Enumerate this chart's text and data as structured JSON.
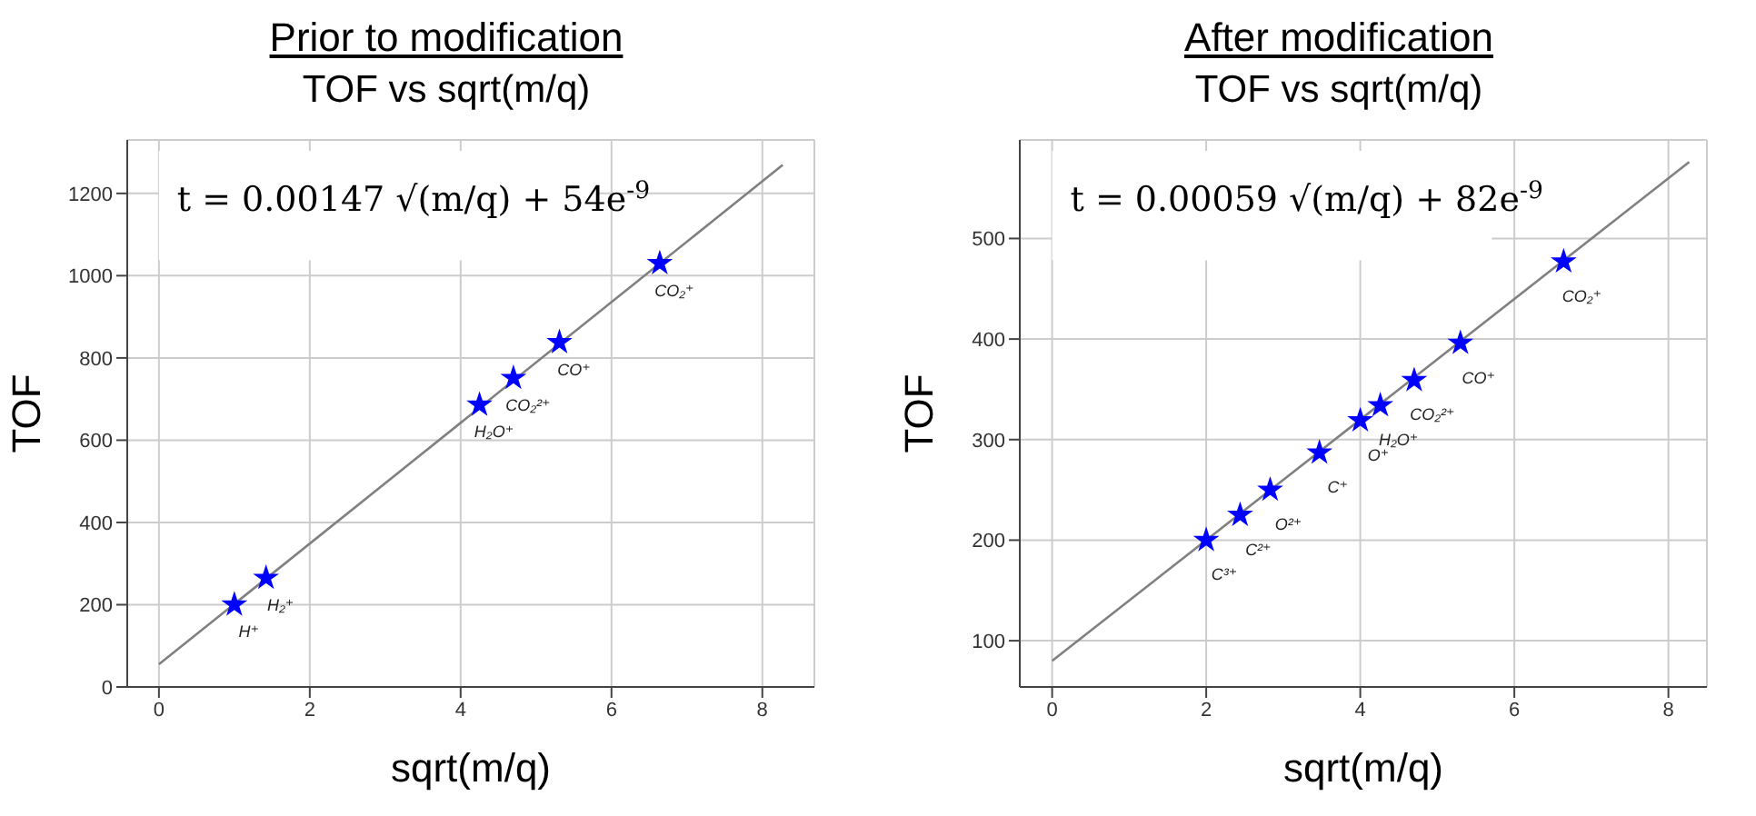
{
  "chart_data": [
    {
      "type": "scatter",
      "title": "Prior to modification",
      "subtitle": "TOF vs sqrt(m/q)",
      "xlabel": "sqrt(m/q)",
      "ylabel": "TOF",
      "xlim": [
        -0.42,
        8.69
      ],
      "ylim": [
        0,
        1330
      ],
      "xticks": [
        0,
        2,
        4,
        6,
        8
      ],
      "yticks": [
        0,
        200,
        400,
        600,
        800,
        1000,
        1200
      ],
      "grid": true,
      "legend": false,
      "series": [
        {
          "color": "#0000ff",
          "marker": "star",
          "x": [
            1.0,
            1.42,
            4.25,
            4.7,
            5.31,
            6.64
          ],
          "values": [
            200,
            265,
            686,
            751,
            838,
            1030
          ]
        },
        {
          "type": "line",
          "color": "#808080",
          "marker": "none",
          "x": [
            0,
            8.27
          ],
          "values": [
            55,
            1269
          ]
        }
      ],
      "annotations": [
        "t = 0.00147 √(m/q) + 54e$^{-9}$",
        {
          "text": "H⁺",
          "x": 1.0,
          "y": 200
        },
        {
          "text": "H₂⁺",
          "x": 1.42,
          "y": 265
        },
        {
          "text": "H₂O⁺",
          "x": 4.25,
          "y": 686
        },
        {
          "text": "CO₂²⁺",
          "x": 4.7,
          "y": 751
        },
        {
          "text": "CO⁺",
          "x": 5.31,
          "y": 838
        },
        {
          "text": "CO₂⁺",
          "x": 6.64,
          "y": 1030
        }
      ]
    },
    {
      "type": "scatter",
      "title": "After modification",
      "subtitle": "TOF vs sqrt(m/q)",
      "xlabel": "sqrt(m/q)",
      "ylabel": "TOF",
      "xlim": [
        -0.42,
        8.5
      ],
      "ylim": [
        54,
        598
      ],
      "xticks": [
        0,
        2,
        4,
        6,
        8
      ],
      "yticks": [
        100,
        200,
        300,
        400,
        500
      ],
      "grid": true,
      "legend": false,
      "series": [
        {
          "color": "#0000ff",
          "marker": "star",
          "x": [
            2.0,
            2.44,
            2.83,
            3.47,
            4.0,
            4.26,
            4.7,
            5.3,
            6.64
          ],
          "values": [
            200,
            225,
            250,
            287,
            319,
            334,
            359,
            396,
            477
          ]
        },
        {
          "type": "line",
          "color": "#808080",
          "marker": "none",
          "x": [
            0,
            8.27
          ],
          "values": [
            80,
            576
          ]
        }
      ],
      "annotations": [
        "t = 0.00059 √(m/q) + 82e$^{-9}$",
        {
          "text": "C³⁺",
          "x": 2.0,
          "y": 200
        },
        {
          "text": "C²⁺",
          "x": 2.44,
          "y": 225
        },
        {
          "text": "O²⁺",
          "x": 2.83,
          "y": 250
        },
        {
          "text": "C⁺",
          "x": 3.47,
          "y": 287
        },
        {
          "text": "O⁺",
          "x": 4.0,
          "y": 319
        },
        {
          "text": "H₂O⁺",
          "x": 4.26,
          "y": 334
        },
        {
          "text": "CO₂²⁺",
          "x": 4.7,
          "y": 359
        },
        {
          "text": "CO⁺",
          "x": 5.3,
          "y": 396
        },
        {
          "text": "CO₂⁺",
          "x": 6.64,
          "y": 477
        }
      ]
    }
  ]
}
